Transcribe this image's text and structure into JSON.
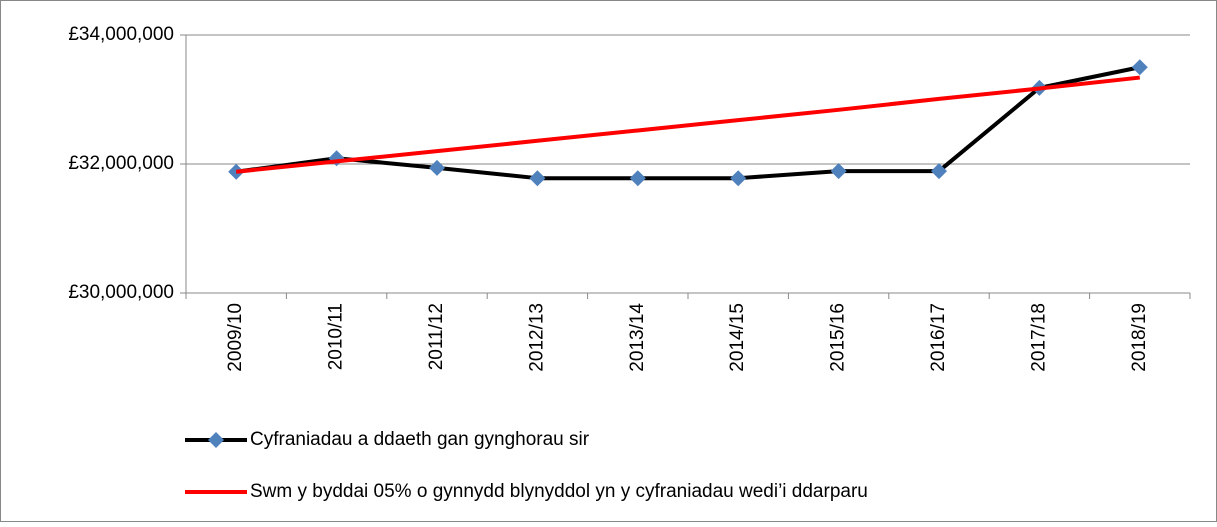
{
  "chart_data": {
    "type": "line",
    "categories": [
      "2009/10",
      "2010/11",
      "2011/12",
      "2012/13",
      "2013/14",
      "2014/15",
      "2015/16",
      "2016/17",
      "2017/18",
      "2018/19"
    ],
    "series": [
      {
        "name": "Cyfraniadau a ddaeth gan gynghorau sir",
        "color": "#000000",
        "marker_color": "#4f81bd",
        "values": [
          31880000,
          32090000,
          31940000,
          31780000,
          31780000,
          31780000,
          31890000,
          31890000,
          33180000,
          33500000
        ]
      },
      {
        "name": "Swm y byddai 05% o gynnydd blynyddol yn y cyfraniadau wedi’i ddarparu",
        "color": "#ff0000",
        "values": [
          31880000,
          32040000,
          32200000,
          32360000,
          32520000,
          32680000,
          32840000,
          33010000,
          33170000,
          33340000
        ]
      }
    ],
    "ylim": [
      30000000,
      34000000
    ],
    "yticks": [
      {
        "value": 30000000,
        "label": "£30,000,000"
      },
      {
        "value": 32000000,
        "label": "£32,000,000"
      },
      {
        "value": 34000000,
        "label": "£34,000,000"
      }
    ],
    "grid": true
  }
}
